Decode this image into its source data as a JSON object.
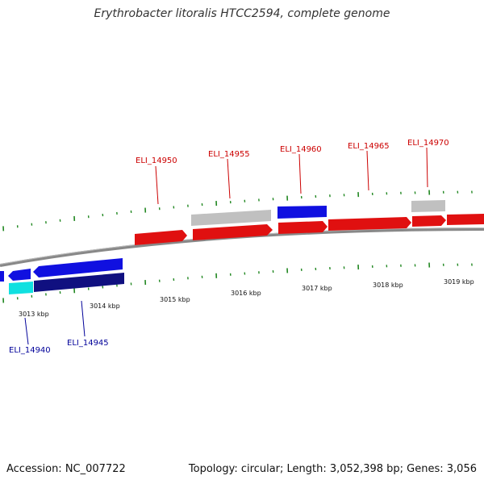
{
  "title": "Erythrobacter litoralis HTCC2594, complete genome",
  "footer": {
    "accession": "Accession: NC_007722",
    "topology": "Topology: circular; Length: 3,052,398 bp; Genes: 3,056"
  },
  "colors": {
    "forward_gene": "#e01010",
    "forward_label": "#cc0000",
    "reverse_gene": "#1010e0",
    "reverse_label": "#000099",
    "reverse_gene_dark": "#101080",
    "reverse_gene_cyan": "#10e0e0",
    "other_gene": "#c0c0c0",
    "tick": "#228822",
    "backbone": "#888888"
  },
  "scale_labels": [
    "3013 kbp",
    "3014 kbp",
    "3015 kbp",
    "3016 kbp",
    "3017 kbp",
    "3018 kbp",
    "3019 kbp"
  ],
  "gene_labels": {
    "forward": [
      "ELI_14950",
      "ELI_14955",
      "ELI_14960",
      "ELI_14965",
      "ELI_14970"
    ],
    "reverse": [
      "ELI_14940",
      "ELI_14945"
    ]
  }
}
